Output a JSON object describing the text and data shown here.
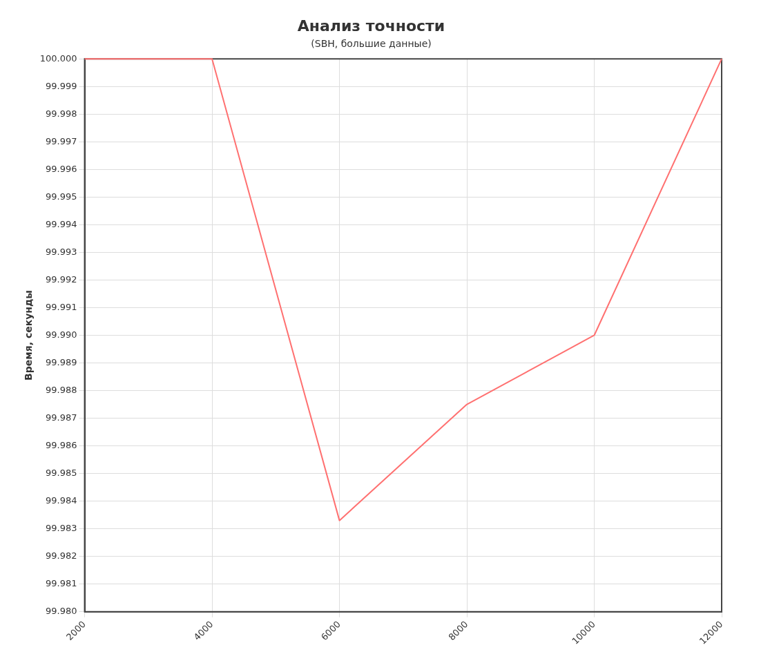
{
  "chart_data": {
    "type": "line",
    "title": "Анализ точности",
    "subtitle": "(SBH, большие данные)",
    "ylabel": "Время, секунды",
    "x": [
      2000,
      4000,
      6000,
      8000,
      10000,
      12000
    ],
    "series": [
      {
        "color": "#ff7070",
        "values": [
          100,
          100,
          99.9833,
          99.9875,
          99.99,
          100
        ]
      }
    ],
    "xlim": [
      2000,
      12000
    ],
    "xticks": [
      2000,
      4000,
      6000,
      8000,
      10000,
      12000
    ],
    "ylim": [
      99.98,
      100
    ],
    "yticks": [
      {
        "value": 99.98,
        "label": "99.980"
      },
      {
        "value": 99.981,
        "label": "99.981"
      },
      {
        "value": 99.982,
        "label": "99.982"
      },
      {
        "value": 99.983,
        "label": "99.983"
      },
      {
        "value": 99.984,
        "label": "99.984"
      },
      {
        "value": 99.985,
        "label": "99.985"
      },
      {
        "value": 99.986,
        "label": "99.986"
      },
      {
        "value": 99.987,
        "label": "99.987"
      },
      {
        "value": 99.988,
        "label": "99.988"
      },
      {
        "value": 99.989,
        "label": "99.989"
      },
      {
        "value": 99.99,
        "label": "99.990"
      },
      {
        "value": 99.991,
        "label": "99.991"
      },
      {
        "value": 99.992,
        "label": "99.992"
      },
      {
        "value": 99.993,
        "label": "99.993"
      },
      {
        "value": 99.994,
        "label": "99.994"
      },
      {
        "value": 99.995,
        "label": "99.995"
      },
      {
        "value": 99.996,
        "label": "99.996"
      },
      {
        "value": 99.997,
        "label": "99.997"
      },
      {
        "value": 99.998,
        "label": "99.998"
      },
      {
        "value": 99.999,
        "label": "99.999"
      },
      {
        "value": 100,
        "label": "100.000"
      }
    ],
    "grid": true,
    "legend": false,
    "marker": "none",
    "line_style": "solid"
  }
}
